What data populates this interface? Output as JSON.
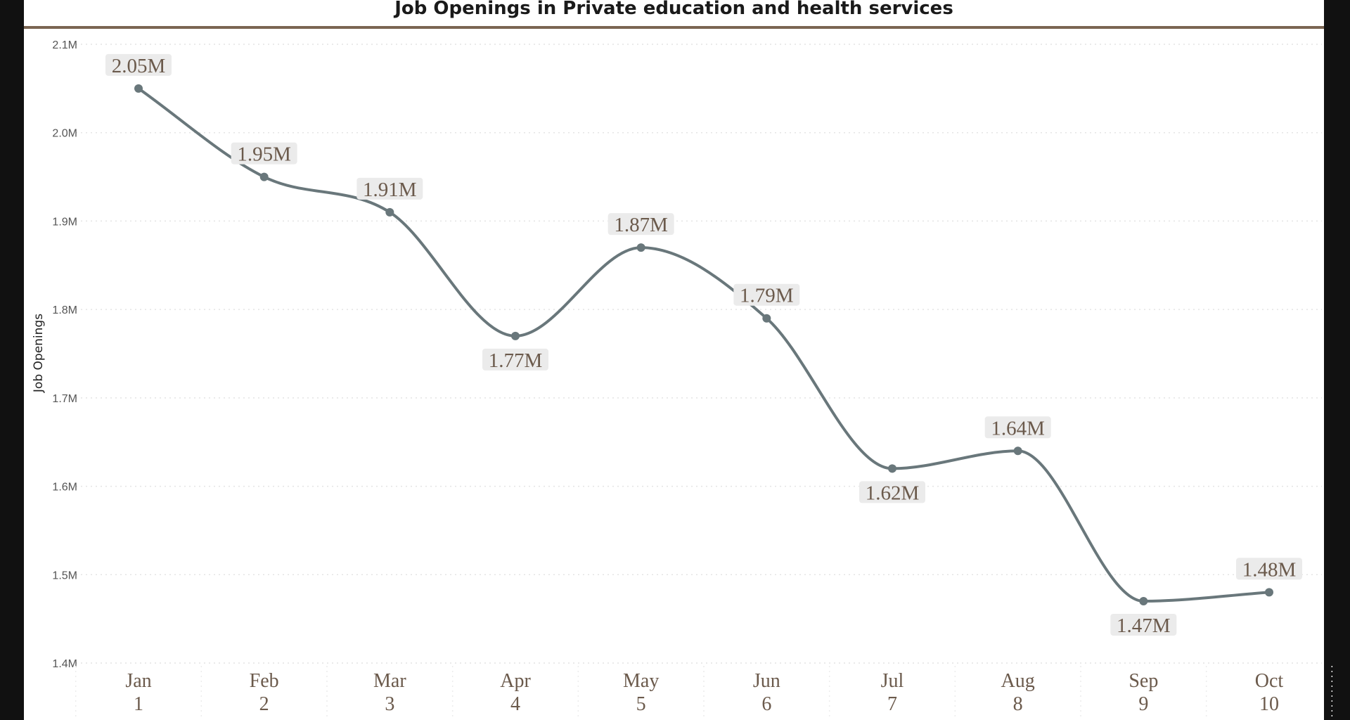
{
  "chart_data": {
    "type": "line",
    "title": "Job Openings in Private education and health services",
    "xlabel": "",
    "ylabel": "Job Openings",
    "categories": [
      {
        "month": "Jan",
        "num": "1"
      },
      {
        "month": "Feb",
        "num": "2"
      },
      {
        "month": "Mar",
        "num": "3"
      },
      {
        "month": "Apr",
        "num": "4"
      },
      {
        "month": "May",
        "num": "5"
      },
      {
        "month": "Jun",
        "num": "6"
      },
      {
        "month": "Jul",
        "num": "7"
      },
      {
        "month": "Aug",
        "num": "8"
      },
      {
        "month": "Sep",
        "num": "9"
      },
      {
        "month": "Oct",
        "num": "10"
      }
    ],
    "values": [
      2.05,
      1.95,
      1.91,
      1.77,
      1.87,
      1.79,
      1.62,
      1.64,
      1.47,
      1.48
    ],
    "data_labels": [
      "2.05M",
      "1.95M",
      "1.91M",
      "1.77M",
      "1.87M",
      "1.79M",
      "1.62M",
      "1.64M",
      "1.47M",
      "1.48M"
    ],
    "label_positions": [
      "above",
      "above",
      "above",
      "below",
      "above",
      "above",
      "below",
      "above",
      "below",
      "above"
    ],
    "value_unit": "M",
    "ylim": [
      1.4,
      2.1
    ],
    "yticks": [
      "1.4M",
      "1.5M",
      "1.6M",
      "1.7M",
      "1.8M",
      "1.9M",
      "2.0M",
      "2.1M"
    ],
    "grid": true,
    "smooth": true,
    "colors": {
      "line": "#69777b",
      "label_text": "#6b5a4c",
      "label_bg": "#ebebeb",
      "title_rule": "#7a6552"
    }
  }
}
